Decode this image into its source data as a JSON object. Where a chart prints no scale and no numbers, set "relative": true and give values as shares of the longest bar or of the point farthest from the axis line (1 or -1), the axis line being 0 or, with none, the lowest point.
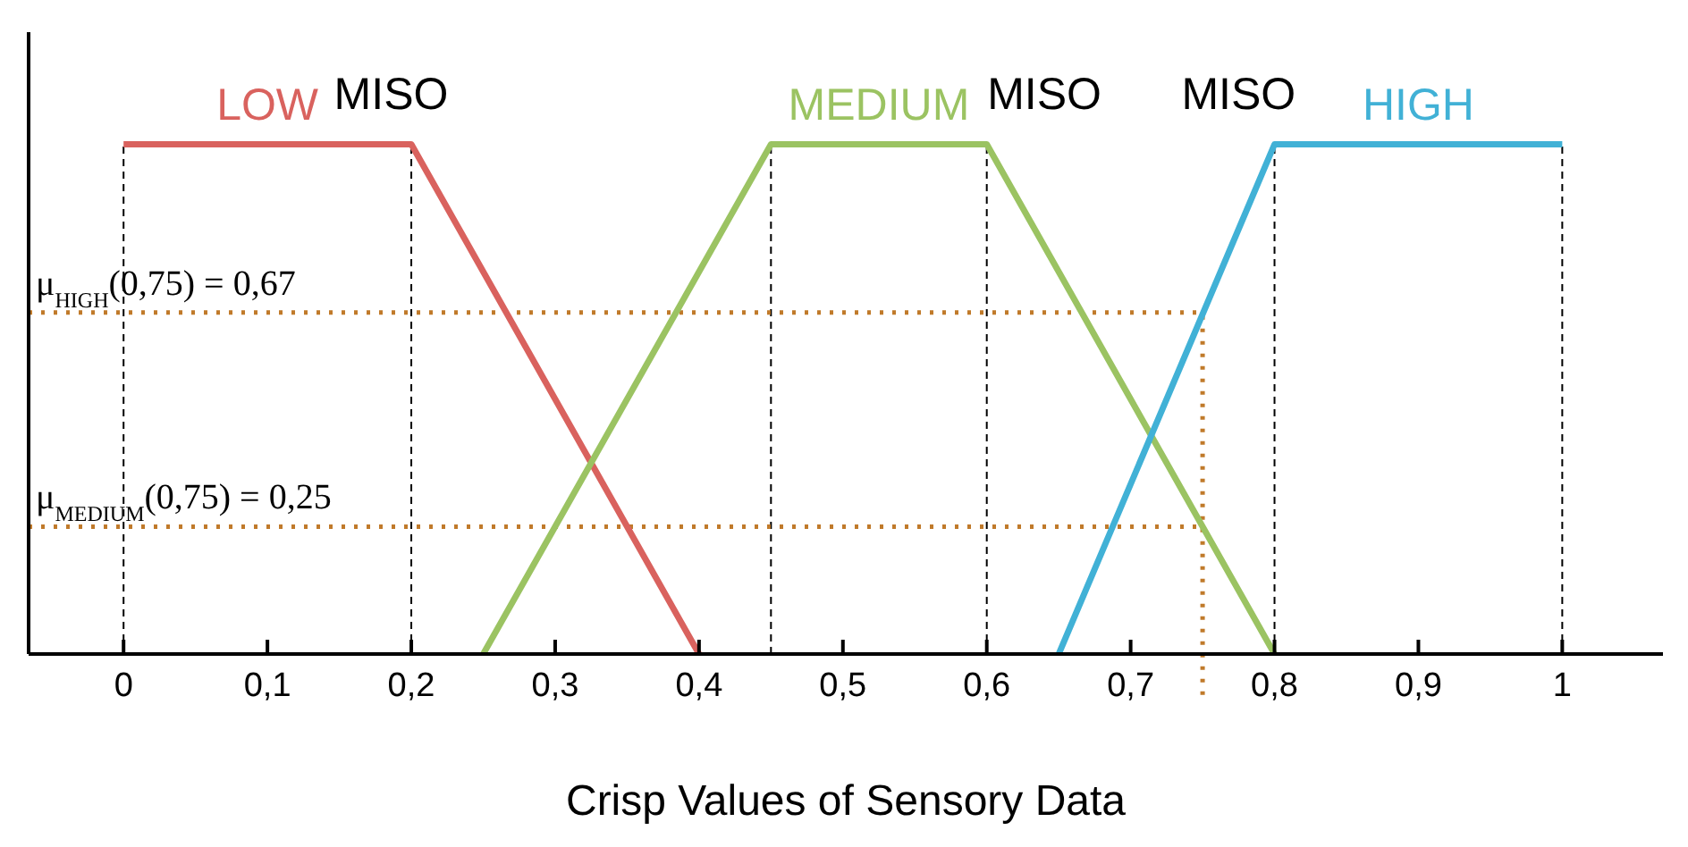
{
  "chart_data": {
    "type": "line",
    "xlabel": "Crisp Values of Sensory Data",
    "relative": true,
    "grid": false,
    "legend": false,
    "marker": "none",
    "line_style": "solid",
    "tick_labels": "x",
    "xlim": [
      -0.066,
      1.07
    ],
    "xticks": [
      0,
      {
        "value": 0.1,
        "label": "0,1"
      },
      {
        "value": 0.2,
        "label": "0,2"
      },
      {
        "value": 0.3,
        "label": "0,3"
      },
      {
        "value": 0.4,
        "label": "0,4"
      },
      {
        "value": 0.5,
        "label": "0,5"
      },
      {
        "value": 0.6,
        "label": "0,6"
      },
      {
        "value": 0.7,
        "label": "0,7"
      },
      {
        "value": 0.8,
        "label": "0,8"
      },
      {
        "value": 0.9,
        "label": "0,9"
      },
      1
    ],
    "series": [
      {
        "name": "LOW",
        "color": "#d9625e",
        "x": [
          0,
          0.2,
          0.4
        ],
        "values": [
          1,
          1,
          0
        ]
      },
      {
        "name": "MEDIUM",
        "color": "#9bc362",
        "x": [
          0.25,
          0.45,
          0.6,
          0.8
        ],
        "values": [
          0,
          1,
          1,
          0
        ]
      },
      {
        "name": "HIGH",
        "color": "#41b1d6",
        "x": [
          0.65,
          0.8,
          1
        ],
        "values": [
          0,
          1,
          1
        ]
      }
    ],
    "ref_lines": [
      {
        "axis": "x",
        "value": 0,
        "color": "#000000",
        "line_style": "dashed"
      },
      {
        "axis": "x",
        "value": 0.2,
        "color": "#000000",
        "line_style": "dashed"
      },
      {
        "axis": "x",
        "value": 0.45,
        "color": "#000000",
        "line_style": "dashed"
      },
      {
        "axis": "x",
        "value": 0.6,
        "color": "#000000",
        "line_style": "dashed"
      },
      {
        "axis": "x",
        "value": 0.8,
        "color": "#000000",
        "line_style": "dashed"
      },
      {
        "axis": "x",
        "value": 1,
        "color": "#000000",
        "line_style": "dashed"
      },
      {
        "axis": "x",
        "value": 0.75,
        "color": "#c07a2a",
        "line_style": "dotted"
      },
      {
        "axis": "y",
        "value": 0.67,
        "label": "μ$_{HIGH}$(0,75) = 0,67",
        "color": "#c07a2a",
        "line_style": "dotted"
      },
      {
        "axis": "y",
        "value": 0.25,
        "label": "μ$_{MEDIUM}$(0,75) = 0,25",
        "color": "#c07a2a",
        "line_style": "dotted"
      }
    ],
    "annotations": [
      "MISO",
      "MISO",
      "MISO"
    ]
  }
}
